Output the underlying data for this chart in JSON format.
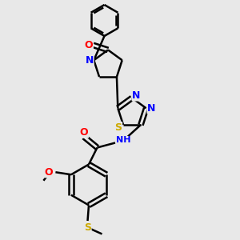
{
  "bg_color": "#e8e8e8",
  "bond_color": "#000000",
  "bond_width": 1.8,
  "atom_colors": {
    "N": "#0000ff",
    "O": "#ff0000",
    "S": "#ccaa00",
    "C": "#000000",
    "H": "#888888"
  },
  "font_size": 9,
  "figsize": [
    3.0,
    3.0
  ],
  "dpi": 100
}
